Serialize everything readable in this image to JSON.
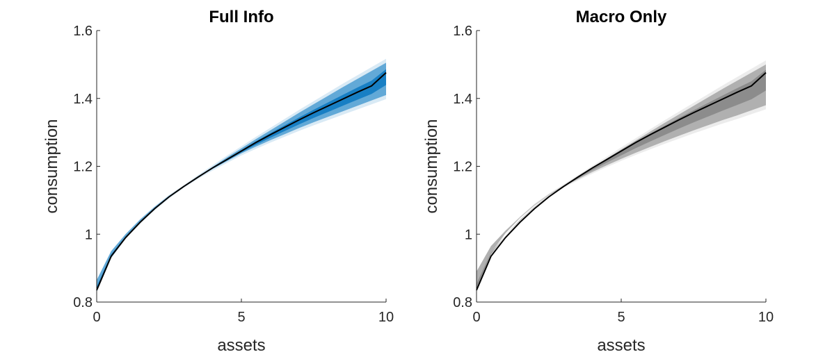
{
  "chart_data": [
    {
      "type": "line",
      "title": "Full Info",
      "xlabel": "assets",
      "ylabel": "consumption",
      "xlim": [
        0,
        10
      ],
      "ylim": [
        0.8,
        1.6
      ],
      "xticks": [
        "0",
        "5",
        "10"
      ],
      "yticks": [
        "0.8",
        "1",
        "1.2",
        "1.4",
        "1.6"
      ],
      "band_color": "#0072BD",
      "line_color": "#000000",
      "grid": false,
      "series": [
        {
          "x": [
            0,
            0.5,
            1,
            1.5,
            2,
            2.5,
            3,
            3.5,
            4,
            4.5,
            5,
            5.5,
            6,
            6.5,
            7,
            7.5,
            8,
            8.5,
            9,
            9.5,
            10
          ],
          "values": [
            0.835,
            0.935,
            0.99,
            1.035,
            1.075,
            1.11,
            1.14,
            1.168,
            1.195,
            1.22,
            1.245,
            1.27,
            1.293,
            1.315,
            1.337,
            1.358,
            1.378,
            1.398,
            1.418,
            1.437,
            1.476
          ]
        },
        {
          "x": [
            0,
            0.5,
            1,
            1.5,
            2,
            2.5,
            3,
            3.5,
            4,
            4.5,
            5,
            5.5,
            6,
            6.5,
            7,
            7.5,
            8,
            8.5,
            9,
            9.5,
            10
          ],
          "values": [
            0.83,
            0.93,
            0.988,
            1.033,
            1.073,
            1.108,
            1.14,
            1.167,
            1.192,
            1.215,
            1.238,
            1.258,
            1.277,
            1.295,
            1.313,
            1.33,
            1.346,
            1.362,
            1.378,
            1.394,
            1.41
          ]
        },
        {
          "x": [
            0,
            0.5,
            1,
            1.5,
            2,
            2.5,
            3,
            3.5,
            4,
            4.5,
            5,
            5.5,
            6,
            6.5,
            7,
            7.5,
            8,
            8.5,
            9,
            9.5,
            10
          ],
          "values": [
            0.865,
            0.95,
            1.0,
            1.043,
            1.08,
            1.113,
            1.14,
            1.17,
            1.198,
            1.226,
            1.253,
            1.28,
            1.306,
            1.332,
            1.358,
            1.383,
            1.408,
            1.433,
            1.457,
            1.481,
            1.505
          ]
        }
      ]
    },
    {
      "type": "line",
      "title": "Macro Only",
      "xlabel": "assets",
      "ylabel": "consumption",
      "xlim": [
        0,
        10
      ],
      "ylim": [
        0.8,
        1.6
      ],
      "xticks": [
        "0",
        "5",
        "10"
      ],
      "yticks": [
        "0.8",
        "1",
        "1.2",
        "1.4",
        "1.6"
      ],
      "band_color": "#808080",
      "line_color": "#000000",
      "grid": false,
      "series": [
        {
          "x": [
            0,
            0.5,
            1,
            1.5,
            2,
            2.5,
            3,
            3.5,
            4,
            4.5,
            5,
            5.5,
            6,
            6.5,
            7,
            7.5,
            8,
            8.5,
            9,
            9.5,
            10
          ],
          "values": [
            0.835,
            0.935,
            0.99,
            1.035,
            1.075,
            1.11,
            1.14,
            1.168,
            1.195,
            1.22,
            1.245,
            1.27,
            1.293,
            1.315,
            1.337,
            1.358,
            1.378,
            1.398,
            1.418,
            1.437,
            1.476
          ]
        },
        {
          "x": [
            0,
            0.5,
            1,
            1.5,
            2,
            2.5,
            3,
            3.5,
            4,
            4.5,
            5,
            5.5,
            6,
            6.5,
            7,
            7.5,
            8,
            8.5,
            9,
            9.5,
            10
          ],
          "values": [
            0.84,
            0.945,
            1.003,
            1.048,
            1.085,
            1.115,
            1.14,
            1.162,
            1.183,
            1.203,
            1.222,
            1.24,
            1.257,
            1.274,
            1.29,
            1.306,
            1.321,
            1.336,
            1.35,
            1.365,
            1.38
          ]
        },
        {
          "x": [
            0,
            0.5,
            1,
            1.5,
            2,
            2.5,
            3,
            3.5,
            4,
            4.5,
            5,
            5.5,
            6,
            6.5,
            7,
            7.5,
            8,
            8.5,
            9,
            9.5,
            10
          ],
          "values": [
            0.89,
            0.965,
            1.01,
            1.05,
            1.087,
            1.117,
            1.143,
            1.17,
            1.197,
            1.223,
            1.25,
            1.276,
            1.302,
            1.328,
            1.353,
            1.378,
            1.403,
            1.428,
            1.452,
            1.476,
            1.5
          ]
        }
      ]
    }
  ]
}
